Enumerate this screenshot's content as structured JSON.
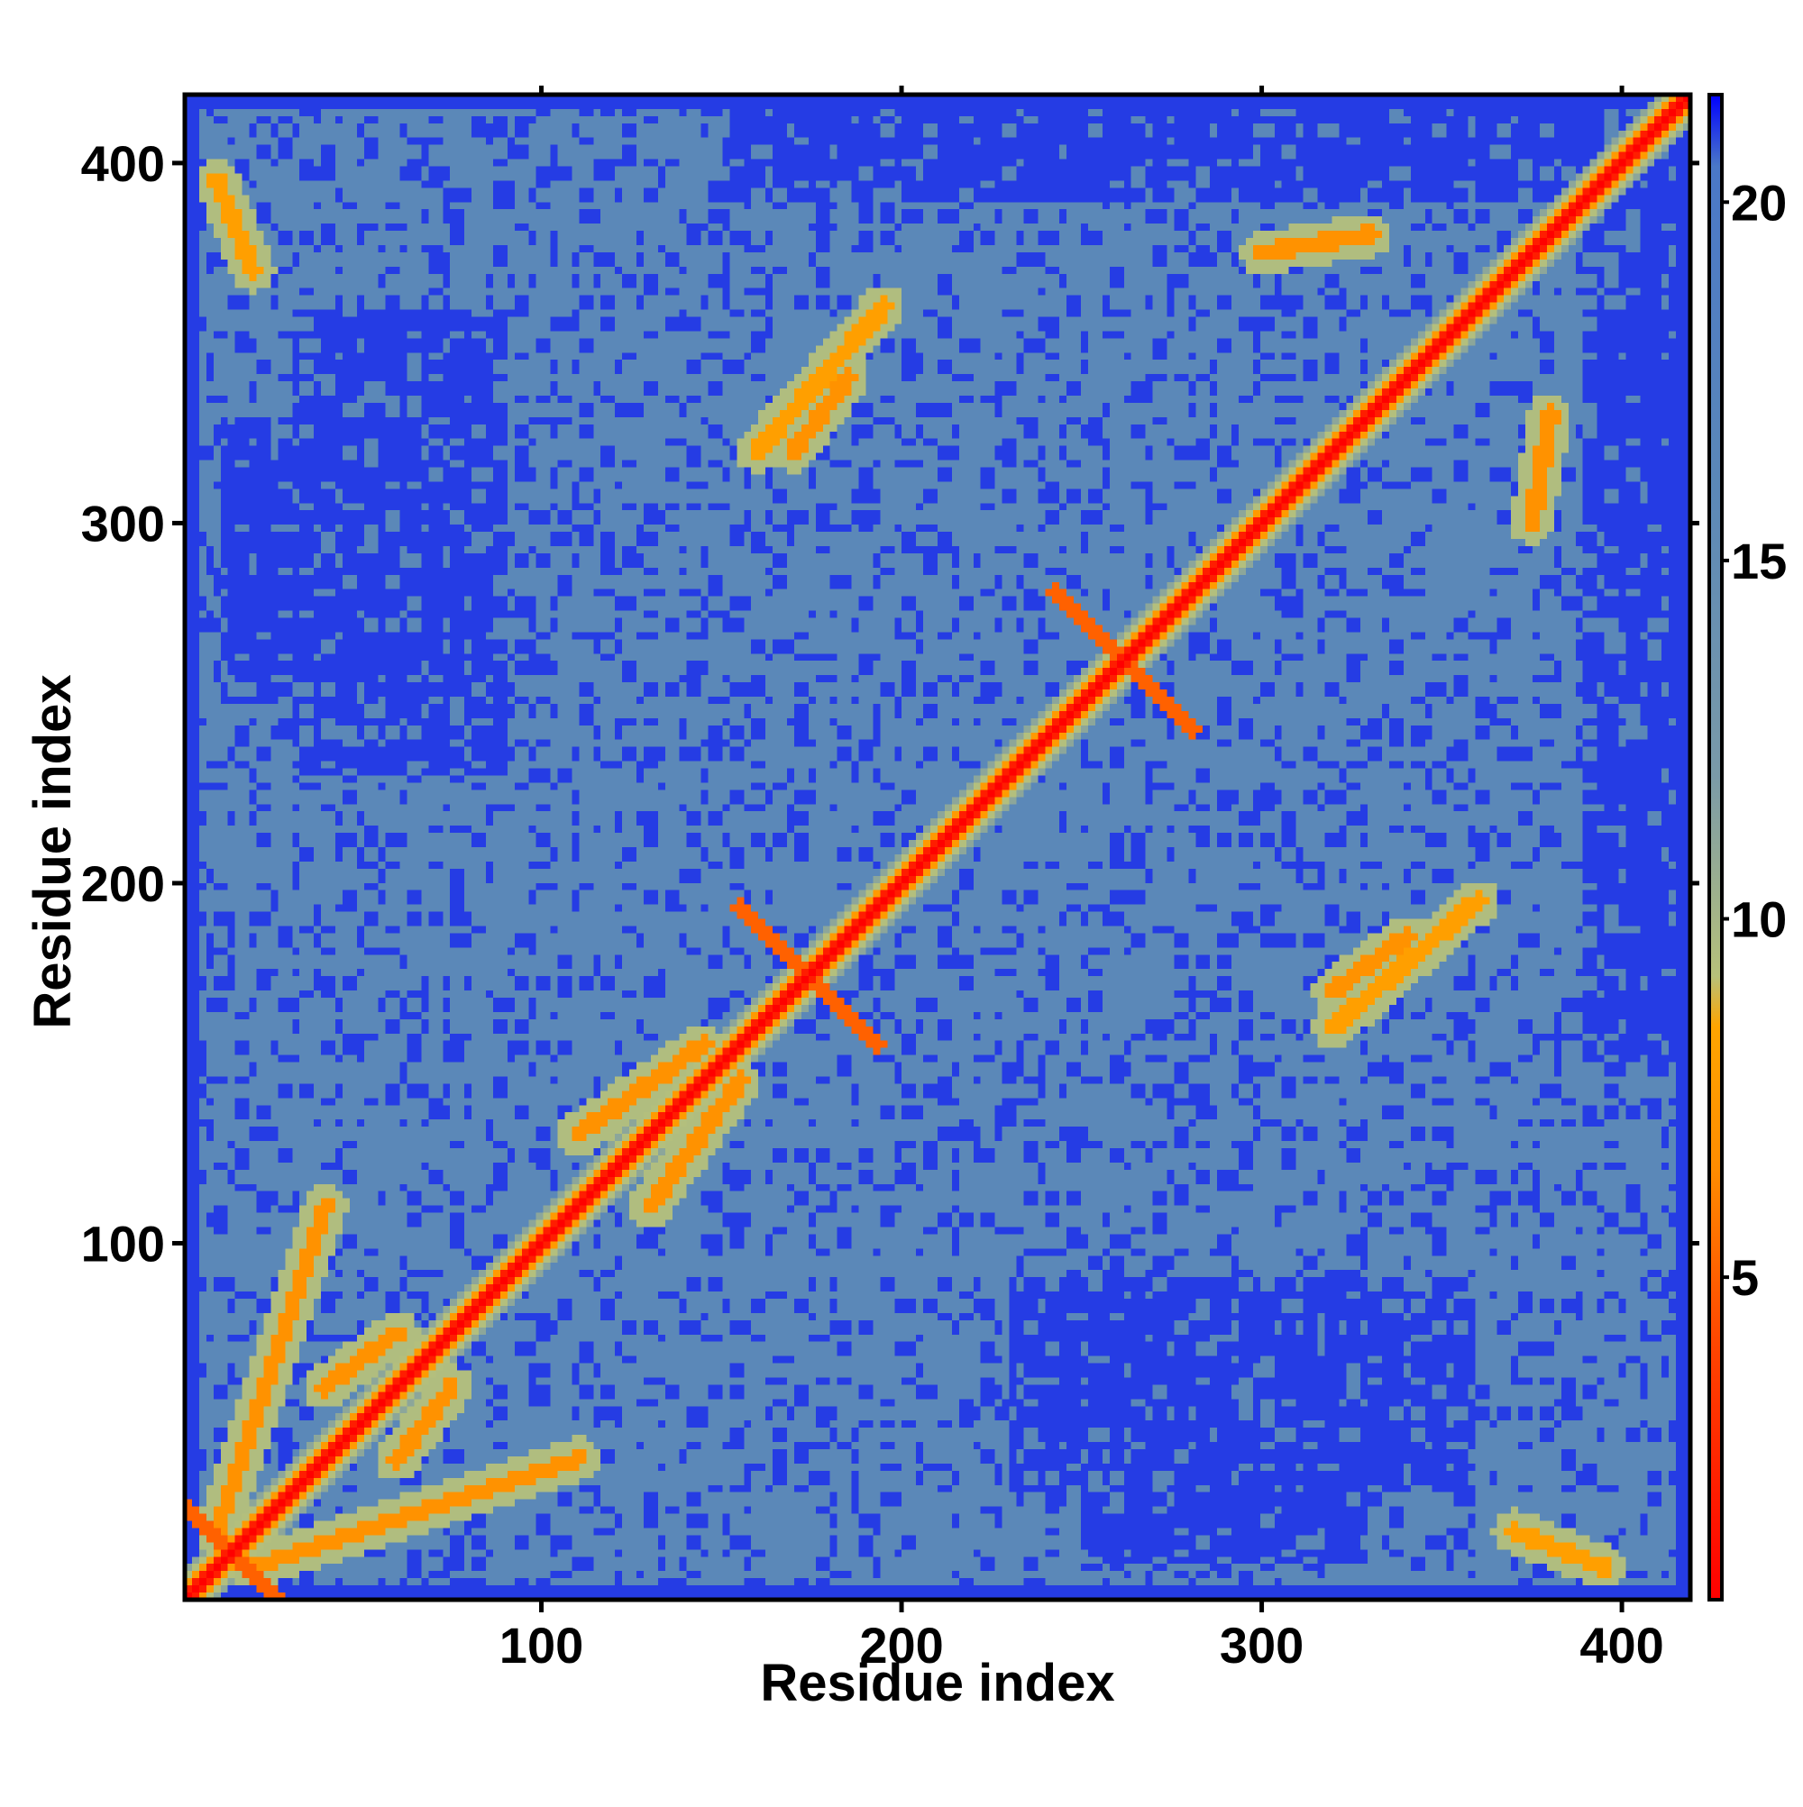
{
  "chart_data": {
    "type": "heatmap",
    "title": "",
    "xlabel": "Residue index",
    "ylabel": "Residue index",
    "xlim": [
      1,
      419
    ],
    "ylim": [
      1,
      419
    ],
    "x_ticks": [
      100,
      200,
      300,
      400
    ],
    "y_ticks": [
      100,
      200,
      300,
      400
    ],
    "colorbar": {
      "ticks": [
        5,
        10,
        15,
        20
      ],
      "range": [
        0.5,
        21.5
      ],
      "gradient": [
        {
          "value": 0.5,
          "color": "#ff0000"
        },
        {
          "value": 4,
          "color": "#ff4400"
        },
        {
          "value": 6.5,
          "color": "#ff8c00"
        },
        {
          "value": 8.5,
          "color": "#ffa500"
        },
        {
          "value": 9.2,
          "color": "#b7c17a"
        },
        {
          "value": 12,
          "color": "#7a9aa8"
        },
        {
          "value": 16,
          "color": "#5b88b8"
        },
        {
          "value": 20.5,
          "color": "#4a78c8"
        },
        {
          "value": 21.5,
          "color": "#0000ff"
        }
      ]
    },
    "value_description": "Residue-residue distance map, symmetric about the diagonal",
    "diagonal_value": 0,
    "background_value": 21,
    "contact_value": 16,
    "cross_features": [
      {
        "residue_i": 14,
        "residue_j": 14
      },
      {
        "residue_i": 174,
        "residue_j": 174
      },
      {
        "residue_i": 262,
        "residue_j": 262
      }
    ],
    "off_diagonal_bands": [
      {
        "from": [
          20,
          10
        ],
        "to": [
          110,
          40
        ],
        "value": 7
      },
      {
        "from": [
          40,
          60
        ],
        "to": [
          60,
          75
        ],
        "value": 7
      },
      {
        "from": [
          130,
          110
        ],
        "to": [
          155,
          145
        ],
        "value": 7
      },
      {
        "from": [
          160,
          320
        ],
        "to": [
          195,
          360
        ],
        "value": 8
      },
      {
        "from": [
          320,
          170
        ],
        "to": [
          340,
          185
        ],
        "value": 7
      },
      {
        "from": [
          300,
          375
        ],
        "to": [
          330,
          380
        ],
        "value": 7
      },
      {
        "from": [
          370,
          20
        ],
        "to": [
          395,
          10
        ],
        "value": 8
      }
    ],
    "far_regions": [
      {
        "x": [
          250,
          330
        ],
        "y": [
          10,
          60
        ]
      },
      {
        "x": [
          30,
          90
        ],
        "y": [
          230,
          360
        ]
      },
      {
        "x": [
          390,
          419
        ],
        "y": [
          150,
          419
        ]
      }
    ]
  }
}
